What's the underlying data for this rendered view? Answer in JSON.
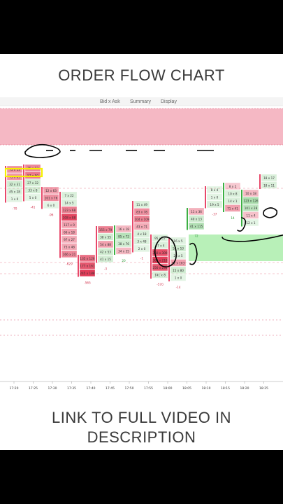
{
  "headline_top": "ORDER FLOW CHART",
  "headline_bottom": "LINK TO FULL VIDEO IN DESCRIPTION",
  "toolbar": {
    "labels": [
      "Bid x Ask",
      "Summary",
      "Display"
    ]
  },
  "colors": {
    "bid": "#e8486a",
    "ask": "#3cb043",
    "zone_top": "#f5b8c4",
    "zone_right": "#b8f0b8",
    "annotation": "#000000",
    "highlight": "#f5f000"
  },
  "chart_data": {
    "type": "footprint",
    "title": "",
    "time_labels": [
      "17:20",
      "17:25",
      "17:30",
      "17:35",
      "17:40",
      "17:45",
      "17:50",
      "17:55",
      "18:00",
      "18:05",
      "18:10",
      "18:15",
      "18:20",
      "18:25"
    ],
    "columns": [
      {
        "cells": [
          "75 x 13",
          "73 x 65",
          "32 x 31",
          "45 x 28",
          "1 x 0"
        ],
        "deltas": [
          "-70"
        ],
        "rel": [
          0.5,
          0.45,
          0.3,
          0.2,
          0.1
        ]
      },
      {
        "cells": [
          "75 x 13",
          "57 x 50",
          "27 x 32",
          "33 x 8",
          "5 x 0"
        ],
        "deltas": [
          "-41"
        ],
        "rel": [
          0.55,
          0.65,
          0.3,
          0.25,
          0.1
        ]
      },
      {
        "cells": [
          "12 x 63",
          "101 x 76",
          "6 x 0"
        ],
        "deltas": [
          "-96"
        ],
        "rel": [
          0.4,
          0.5,
          0.1
        ]
      },
      {
        "cells": [
          "7 x 22",
          "14 x 5",
          "123 x 68",
          "108 x 88",
          "117 x 0",
          "66 x 18",
          "97 x 27",
          "73 x 48",
          "166 x 21"
        ],
        "deltas": [
          "-629"
        ],
        "rel": [
          0.2,
          0.2,
          0.6,
          0.95,
          0.4,
          0.4,
          0.35,
          0.35,
          0.55
        ]
      },
      {
        "cells": [
          "135 x 126",
          "177 x 161",
          "245 x 188"
        ],
        "deltas": [
          "-565"
        ],
        "rel": [
          0.7,
          0.85,
          1.0
        ]
      },
      {
        "cells": [
          "155 x 79",
          "38 x 55",
          "54 x 88",
          "42 x 53",
          "41 x 15"
        ],
        "deltas": [
          "-3"
        ],
        "rel": [
          0.6,
          0.3,
          0.4,
          0.3,
          0.25
        ]
      },
      {
        "cells": [
          "16 x 18",
          "85 x 72",
          "38 x 76",
          "34 x 35"
        ],
        "deltas": [
          "20"
        ],
        "rel": [
          0.25,
          0.55,
          0.3,
          0.25
        ]
      },
      {
        "cells": [
          "11 x 49",
          "83 x 78",
          "104 x 109",
          "43 x 71",
          "4 x 18",
          "3 x 48",
          "2 x 0"
        ],
        "deltas": [
          "-1"
        ],
        "rel": [
          0.2,
          0.5,
          0.6,
          0.35,
          0.2,
          0.2,
          0.1
        ]
      },
      {
        "cells": [
          "95 x 17",
          "27 x 4",
          "360 x 309",
          "362 x 218",
          "250 x 234",
          "141 x 8"
        ],
        "deltas": [
          "-570"
        ],
        "rel": [
          0.2,
          0.2,
          0.9,
          1.0,
          0.85,
          0.2
        ]
      },
      {
        "cells": [
          "16 x 5",
          "52 x 53",
          "26 x 5",
          "32 x 103",
          "15 x 80",
          "1 x 0"
        ],
        "deltas": [
          "-14"
        ],
        "rel": [
          0.15,
          0.3,
          0.15,
          0.4,
          0.3,
          0.1
        ]
      },
      {
        "cells": [
          "11 x 36",
          "40 x 13",
          "41 x 115"
        ],
        "deltas": [
          "72"
        ],
        "rel": [
          0.3,
          0.3,
          0.6
        ]
      },
      {
        "cells": [
          "8 x 4",
          "1 x 0",
          "19 x 5"
        ],
        "deltas": [
          "-37"
        ],
        "rel": [
          0.1,
          0.1,
          0.2
        ]
      },
      {
        "cells": [
          "8 x 2",
          "10 x 8",
          "14 x 1",
          "71 x 41"
        ],
        "deltas": [
          "14"
        ],
        "rel": [
          0.15,
          0.2,
          0.2,
          0.4
        ]
      },
      {
        "cells": [
          "10 x 18",
          "123 x 126",
          "101 x 28",
          "11 x 4",
          "12 x 1"
        ],
        "deltas": [],
        "rel": [
          0.25,
          0.7,
          0.5,
          0.2,
          0.1
        ]
      },
      {
        "cells": [
          "18 x 17",
          "18 x 11"
        ],
        "deltas": [],
        "rel": [
          0.2,
          0.2
        ]
      }
    ]
  }
}
